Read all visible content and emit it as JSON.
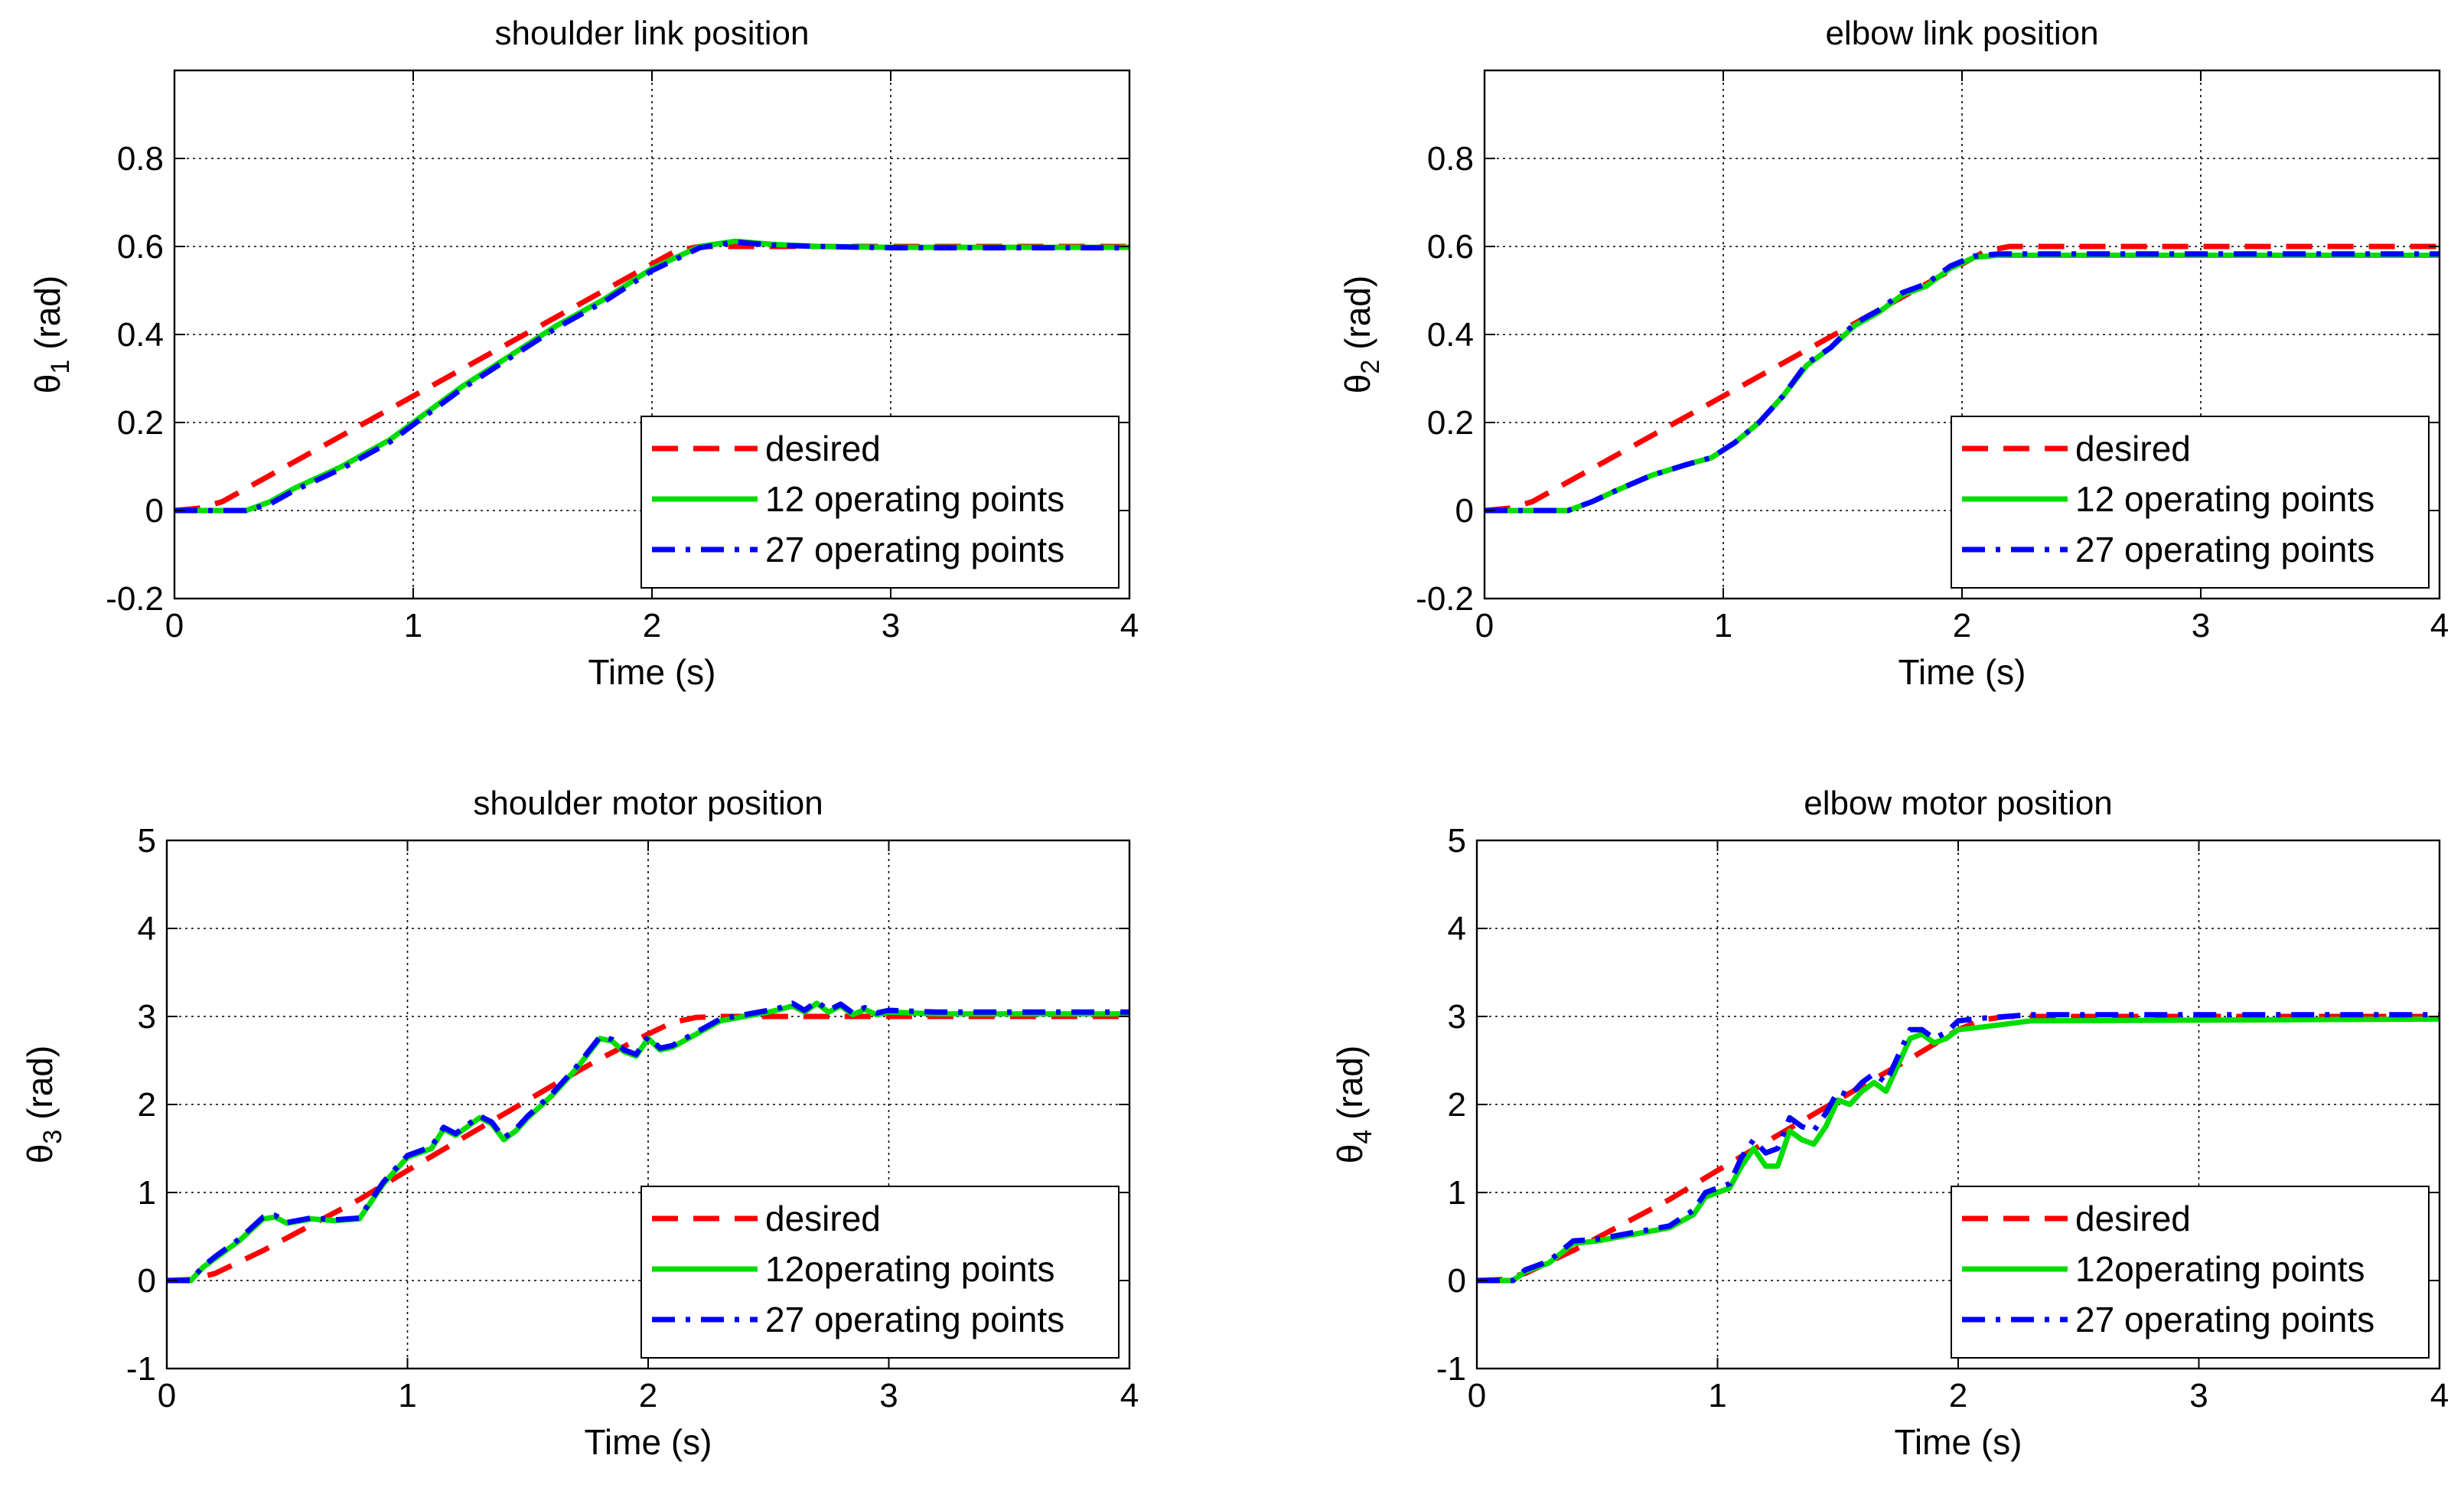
{
  "chart_data": [
    {
      "type": "line",
      "title": "shoulder link position",
      "xlabel": "Time (s)",
      "ylabel_symbol": "θ",
      "ylabel_sub": "1",
      "ylabel_unit": "(rad)",
      "xlim": [
        0,
        4
      ],
      "ylim": [
        -0.2,
        1.0
      ],
      "xticks": [
        0,
        1,
        2,
        3,
        4
      ],
      "yticks": [
        -0.2,
        0,
        0.2,
        0.4,
        0.6,
        0.8
      ],
      "ytick_labels": [
        "-0.2",
        "0",
        "0.2",
        "0.4",
        "0.6",
        "0.8"
      ],
      "xtick_labels": [
        "0",
        "1",
        "2",
        "3",
        "4"
      ],
      "grid": true,
      "legend_position": "bottom-right",
      "series": [
        {
          "name": "desired",
          "color": "#ff0000",
          "style": "dashed",
          "x": [
            0,
            0.1,
            0.2,
            0.4,
            0.6,
            0.8,
            1.0,
            1.2,
            1.4,
            1.6,
            1.8,
            2.0,
            2.1,
            2.2,
            4.0
          ],
          "y": [
            0,
            0.005,
            0.02,
            0.08,
            0.14,
            0.2,
            0.26,
            0.32,
            0.38,
            0.44,
            0.5,
            0.56,
            0.59,
            0.6,
            0.6
          ]
        },
        {
          "name": "12 operating points",
          "color": "#00dd00",
          "style": "solid",
          "x": [
            0,
            0.3,
            0.4,
            0.5,
            0.7,
            0.9,
            1.0,
            1.2,
            1.4,
            1.6,
            1.8,
            2.0,
            2.2,
            2.35,
            2.5,
            2.7,
            3.0,
            4.0
          ],
          "y": [
            0,
            0,
            0.02,
            0.05,
            0.1,
            0.16,
            0.2,
            0.28,
            0.35,
            0.42,
            0.48,
            0.55,
            0.6,
            0.612,
            0.605,
            0.6,
            0.598,
            0.598
          ]
        },
        {
          "name": "27 operating points",
          "color": "#0000ff",
          "style": "dashdot",
          "x": [
            0,
            0.3,
            0.4,
            0.5,
            0.7,
            0.9,
            1.0,
            1.2,
            1.4,
            1.6,
            1.8,
            2.0,
            2.2,
            2.35,
            2.5,
            2.7,
            3.0,
            4.0
          ],
          "y": [
            0,
            0,
            0.015,
            0.045,
            0.095,
            0.155,
            0.195,
            0.275,
            0.345,
            0.415,
            0.475,
            0.545,
            0.597,
            0.61,
            0.603,
            0.6,
            0.597,
            0.597
          ]
        }
      ]
    },
    {
      "type": "line",
      "title": "elbow link position",
      "xlabel": "Time (s)",
      "ylabel_symbol": "θ",
      "ylabel_sub": "2",
      "ylabel_unit": "(rad)",
      "xlim": [
        0,
        4
      ],
      "ylim": [
        -0.2,
        1.0
      ],
      "xticks": [
        0,
        1,
        2,
        3,
        4
      ],
      "yticks": [
        -0.2,
        0,
        0.2,
        0.4,
        0.6,
        0.8
      ],
      "ytick_labels": [
        "-0.2",
        "0",
        "0.2",
        "0.4",
        "0.6",
        "0.8"
      ],
      "xtick_labels": [
        "0",
        "1",
        "2",
        "3",
        "4"
      ],
      "grid": true,
      "legend_position": "bottom-right",
      "series": [
        {
          "name": "desired",
          "color": "#ff0000",
          "style": "dashed",
          "x": [
            0,
            0.1,
            0.2,
            0.4,
            0.6,
            0.8,
            1.0,
            1.2,
            1.4,
            1.6,
            1.8,
            2.0,
            2.1,
            2.2,
            4.0
          ],
          "y": [
            0,
            0.005,
            0.02,
            0.08,
            0.14,
            0.2,
            0.26,
            0.32,
            0.38,
            0.44,
            0.5,
            0.56,
            0.59,
            0.6,
            0.6
          ]
        },
        {
          "name": "12 operating points",
          "color": "#00dd00",
          "style": "solid",
          "x": [
            0,
            0.35,
            0.45,
            0.55,
            0.7,
            0.85,
            0.95,
            1.05,
            1.15,
            1.25,
            1.35,
            1.45,
            1.55,
            1.65,
            1.75,
            1.85,
            1.95,
            2.05,
            2.15,
            4.0
          ],
          "y": [
            0,
            0,
            0.02,
            0.045,
            0.08,
            0.105,
            0.12,
            0.155,
            0.2,
            0.26,
            0.33,
            0.37,
            0.42,
            0.45,
            0.49,
            0.51,
            0.55,
            0.575,
            0.58,
            0.58
          ]
        },
        {
          "name": "27 operating points",
          "color": "#0000ff",
          "style": "dashdot",
          "x": [
            0,
            0.35,
            0.45,
            0.55,
            0.7,
            0.85,
            0.95,
            1.05,
            1.15,
            1.25,
            1.35,
            1.45,
            1.55,
            1.65,
            1.75,
            1.85,
            1.95,
            2.05,
            2.15,
            4.0
          ],
          "y": [
            0,
            0,
            0.02,
            0.045,
            0.08,
            0.105,
            0.12,
            0.155,
            0.2,
            0.26,
            0.335,
            0.37,
            0.425,
            0.455,
            0.495,
            0.515,
            0.555,
            0.578,
            0.583,
            0.583
          ]
        }
      ]
    },
    {
      "type": "line",
      "title": "shoulder motor position",
      "xlabel": "Time (s)",
      "ylabel_symbol": "θ",
      "ylabel_sub": "3",
      "ylabel_unit": "(rad)",
      "xlim": [
        0,
        4
      ],
      "ylim": [
        -1,
        5
      ],
      "xticks": [
        0,
        1,
        2,
        3,
        4
      ],
      "yticks": [
        -1,
        0,
        1,
        2,
        3,
        4,
        5
      ],
      "ytick_labels": [
        "-1",
        "0",
        "1",
        "2",
        "3",
        "4",
        "5"
      ],
      "xtick_labels": [
        "0",
        "1",
        "2",
        "3",
        "4"
      ],
      "grid": true,
      "legend_position": "bottom-right",
      "series": [
        {
          "name": "desired",
          "color": "#ff0000",
          "style": "dashed",
          "x": [
            0,
            0.1,
            0.2,
            0.4,
            0.6,
            0.8,
            1.0,
            1.2,
            1.4,
            1.6,
            1.8,
            2.0,
            2.1,
            2.2,
            2.3,
            4.0
          ],
          "y": [
            0,
            0.01,
            0.08,
            0.34,
            0.63,
            0.92,
            1.25,
            1.57,
            1.89,
            2.21,
            2.52,
            2.8,
            2.93,
            2.99,
            3.0,
            3.0
          ]
        },
        {
          "name": "12operating points",
          "color": "#00dd00",
          "style": "solid",
          "x": [
            0,
            0.1,
            0.15,
            0.2,
            0.3,
            0.4,
            0.45,
            0.5,
            0.6,
            0.7,
            0.8,
            0.9,
            1.0,
            1.1,
            1.15,
            1.2,
            1.3,
            1.35,
            1.4,
            1.45,
            1.5,
            1.6,
            1.7,
            1.8,
            1.85,
            1.9,
            1.95,
            2.0,
            2.05,
            2.1,
            2.2,
            2.3,
            2.4,
            2.5,
            2.55,
            2.6,
            2.65,
            2.7,
            2.75,
            2.8,
            2.85,
            2.9,
            2.95,
            3.0,
            3.2,
            4.0
          ],
          "y": [
            0,
            0,
            0.15,
            0.25,
            0.45,
            0.7,
            0.72,
            0.65,
            0.7,
            0.68,
            0.7,
            1.1,
            1.4,
            1.5,
            1.72,
            1.65,
            1.85,
            1.78,
            1.6,
            1.7,
            1.85,
            2.1,
            2.4,
            2.75,
            2.72,
            2.6,
            2.55,
            2.75,
            2.62,
            2.65,
            2.8,
            2.95,
            3.0,
            3.05,
            3.08,
            3.12,
            3.05,
            3.15,
            3.05,
            3.12,
            3.02,
            3.08,
            3.02,
            3.05,
            3.03,
            3.03
          ]
        },
        {
          "name": "27 operating points",
          "color": "#0000ff",
          "style": "dashdot",
          "x": [
            0,
            0.1,
            0.15,
            0.2,
            0.3,
            0.4,
            0.45,
            0.5,
            0.6,
            0.7,
            0.8,
            0.9,
            1.0,
            1.1,
            1.15,
            1.2,
            1.3,
            1.35,
            1.4,
            1.45,
            1.5,
            1.6,
            1.7,
            1.8,
            1.85,
            1.9,
            1.95,
            2.0,
            2.05,
            2.1,
            2.2,
            2.3,
            2.4,
            2.5,
            2.55,
            2.6,
            2.65,
            2.7,
            2.75,
            2.8,
            2.85,
            2.9,
            2.95,
            3.0,
            3.2,
            4.0
          ],
          "y": [
            0,
            0,
            0.16,
            0.27,
            0.47,
            0.72,
            0.74,
            0.66,
            0.71,
            0.69,
            0.71,
            1.12,
            1.42,
            1.52,
            1.74,
            1.67,
            1.87,
            1.8,
            1.62,
            1.72,
            1.87,
            2.12,
            2.42,
            2.77,
            2.74,
            2.62,
            2.57,
            2.77,
            2.64,
            2.67,
            2.82,
            2.97,
            3.02,
            3.07,
            3.1,
            3.15,
            3.07,
            3.17,
            3.07,
            3.14,
            3.04,
            3.1,
            3.04,
            3.07,
            3.05,
            3.05
          ]
        }
      ]
    },
    {
      "type": "line",
      "title": "elbow motor position",
      "xlabel": "Time (s)",
      "ylabel_symbol": "θ",
      "ylabel_sub": "4",
      "ylabel_unit": "(rad)",
      "xlim": [
        0,
        4
      ],
      "ylim": [
        -1,
        5
      ],
      "xticks": [
        0,
        1,
        2,
        3,
        4
      ],
      "yticks": [
        -1,
        0,
        1,
        2,
        3,
        4,
        5
      ],
      "ytick_labels": [
        "-1",
        "0",
        "1",
        "2",
        "3",
        "4",
        "5"
      ],
      "xtick_labels": [
        "0",
        "1",
        "2",
        "3",
        "4"
      ],
      "grid": true,
      "legend_position": "bottom-right",
      "series": [
        {
          "name": "desired",
          "color": "#ff0000",
          "style": "dashed",
          "x": [
            0,
            0.1,
            0.2,
            0.4,
            0.6,
            0.8,
            1.0,
            1.2,
            1.4,
            1.6,
            1.8,
            2.0,
            2.1,
            2.2,
            4.0
          ],
          "y": [
            0,
            0.01,
            0.08,
            0.34,
            0.63,
            0.92,
            1.25,
            1.57,
            1.89,
            2.21,
            2.52,
            2.85,
            2.96,
            3.0,
            3.0
          ]
        },
        {
          "name": "12operating points",
          "color": "#00dd00",
          "style": "solid",
          "x": [
            0,
            0.15,
            0.2,
            0.3,
            0.4,
            0.5,
            0.6,
            0.7,
            0.8,
            0.9,
            0.95,
            1.0,
            1.05,
            1.1,
            1.15,
            1.2,
            1.25,
            1.3,
            1.35,
            1.4,
            1.45,
            1.5,
            1.55,
            1.6,
            1.65,
            1.7,
            1.75,
            1.8,
            1.85,
            1.9,
            1.95,
            2.0,
            2.1,
            2.3,
            4.0
          ],
          "y": [
            0,
            0,
            0.1,
            0.2,
            0.42,
            0.45,
            0.5,
            0.55,
            0.6,
            0.75,
            0.95,
            1.0,
            1.05,
            1.3,
            1.5,
            1.3,
            1.3,
            1.7,
            1.6,
            1.55,
            1.75,
            2.05,
            2.0,
            2.15,
            2.25,
            2.15,
            2.45,
            2.75,
            2.8,
            2.7,
            2.75,
            2.85,
            2.88,
            2.95,
            2.97
          ]
        },
        {
          "name": "27 operating points",
          "color": "#0000ff",
          "style": "dashdot",
          "x": [
            0,
            0.15,
            0.2,
            0.3,
            0.4,
            0.5,
            0.6,
            0.7,
            0.8,
            0.9,
            0.95,
            1.0,
            1.05,
            1.1,
            1.15,
            1.2,
            1.25,
            1.3,
            1.35,
            1.4,
            1.45,
            1.5,
            1.55,
            1.6,
            1.65,
            1.7,
            1.75,
            1.8,
            1.85,
            1.9,
            1.95,
            2.0,
            2.1,
            2.3,
            4.0
          ],
          "y": [
            0,
            0,
            0.12,
            0.22,
            0.45,
            0.47,
            0.52,
            0.57,
            0.62,
            0.8,
            1.0,
            1.05,
            1.1,
            1.4,
            1.6,
            1.45,
            1.5,
            1.85,
            1.75,
            1.7,
            1.9,
            2.15,
            2.1,
            2.25,
            2.35,
            2.25,
            2.55,
            2.85,
            2.85,
            2.75,
            2.82,
            2.95,
            2.98,
            3.02,
            3.02
          ]
        }
      ]
    }
  ]
}
